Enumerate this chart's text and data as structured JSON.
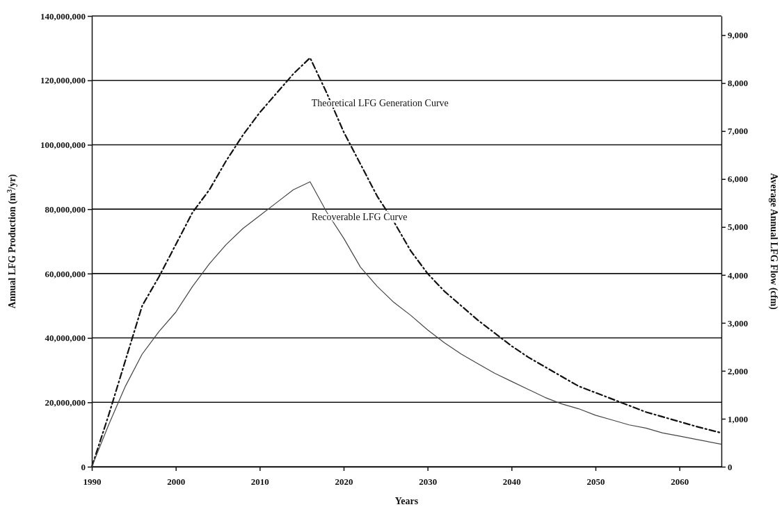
{
  "chart_data": {
    "type": "line",
    "xlabel": "Years",
    "ylabel": "Annual LFG Production (m$^{3}$/yr)",
    "y2label": "Average Annual LFG Flow (cfm)",
    "xlim": [
      1990,
      2065
    ],
    "xticks": [
      1990,
      2000,
      2010,
      2020,
      2030,
      2040,
      2050,
      2060
    ],
    "ylim": [
      0,
      140000000
    ],
    "yticks": [
      {
        "value": 0,
        "label": "0"
      },
      {
        "value": 20000000,
        "label": "20,000,000"
      },
      {
        "value": 40000000,
        "label": "40,000,000"
      },
      {
        "value": 60000000,
        "label": "60,000,000"
      },
      {
        "value": 80000000,
        "label": "80,000,000"
      },
      {
        "value": 100000000,
        "label": "100,000,000"
      },
      {
        "value": 120000000,
        "label": "120,000,000"
      },
      {
        "value": 140000000,
        "label": "140,000,000"
      }
    ],
    "y2lim": [
      0,
      9400
    ],
    "y2ticks": [
      {
        "value": 0,
        "label": "0"
      },
      {
        "value": 1000,
        "label": "1,000"
      },
      {
        "value": 2000,
        "label": "2,000"
      },
      {
        "value": 3000,
        "label": "3,000"
      },
      {
        "value": 4000,
        "label": "4,000"
      },
      {
        "value": 5000,
        "label": "5,000"
      },
      {
        "value": 6000,
        "label": "6,000"
      },
      {
        "value": 7000,
        "label": "7,000"
      },
      {
        "value": 8000,
        "label": "8,000"
      },
      {
        "value": 9000,
        "label": "9,000"
      }
    ],
    "grid": "y",
    "series": [
      {
        "name": "Theoretical LFG Generation Curve",
        "color": "#111111",
        "line_style": "dashed",
        "x": [
          1990,
          1992,
          1994,
          1996,
          1998,
          2000,
          2002,
          2004,
          2006,
          2008,
          2010,
          2012,
          2014,
          2016,
          2018,
          2020,
          2022,
          2024,
          2026,
          2028,
          2030,
          2032,
          2034,
          2036,
          2038,
          2040,
          2042,
          2044,
          2046,
          2048,
          2050,
          2052,
          2054,
          2056,
          2058,
          2060,
          2062,
          2065
        ],
        "values": [
          0,
          16000000,
          33000000,
          50000000,
          59000000,
          69000000,
          79000000,
          86000000,
          95000000,
          103000000,
          110000000,
          116000000,
          122000000,
          127000000,
          116000000,
          104000000,
          94000000,
          84000000,
          76000000,
          67000000,
          60000000,
          54500000,
          50000000,
          45500000,
          41500000,
          37500000,
          34000000,
          31000000,
          28000000,
          25000000,
          23000000,
          21000000,
          19000000,
          17000000,
          15500000,
          14000000,
          12500000,
          10500000
        ]
      },
      {
        "name": "Recoverable LFG Curve",
        "color": "#444444",
        "line_style": "solid",
        "x": [
          1990,
          1992,
          1994,
          1996,
          1998,
          2000,
          2002,
          2004,
          2006,
          2008,
          2010,
          2012,
          2014,
          2016,
          2018,
          2020,
          2022,
          2024,
          2026,
          2028,
          2030,
          2032,
          2034,
          2036,
          2038,
          2040,
          2042,
          2044,
          2046,
          2048,
          2050,
          2052,
          2054,
          2056,
          2058,
          2060,
          2062,
          2065
        ],
        "values": [
          0,
          13000000,
          25000000,
          35000000,
          42000000,
          48000000,
          56000000,
          63000000,
          69000000,
          74000000,
          78000000,
          82000000,
          86000000,
          88500000,
          79000000,
          71000000,
          62000000,
          56000000,
          51000000,
          47000000,
          42500000,
          38500000,
          35000000,
          32000000,
          29000000,
          26500000,
          24000000,
          21500000,
          19500000,
          18000000,
          16000000,
          14500000,
          13000000,
          12000000,
          10500000,
          9500000,
          8500000,
          7000000
        ]
      }
    ]
  }
}
